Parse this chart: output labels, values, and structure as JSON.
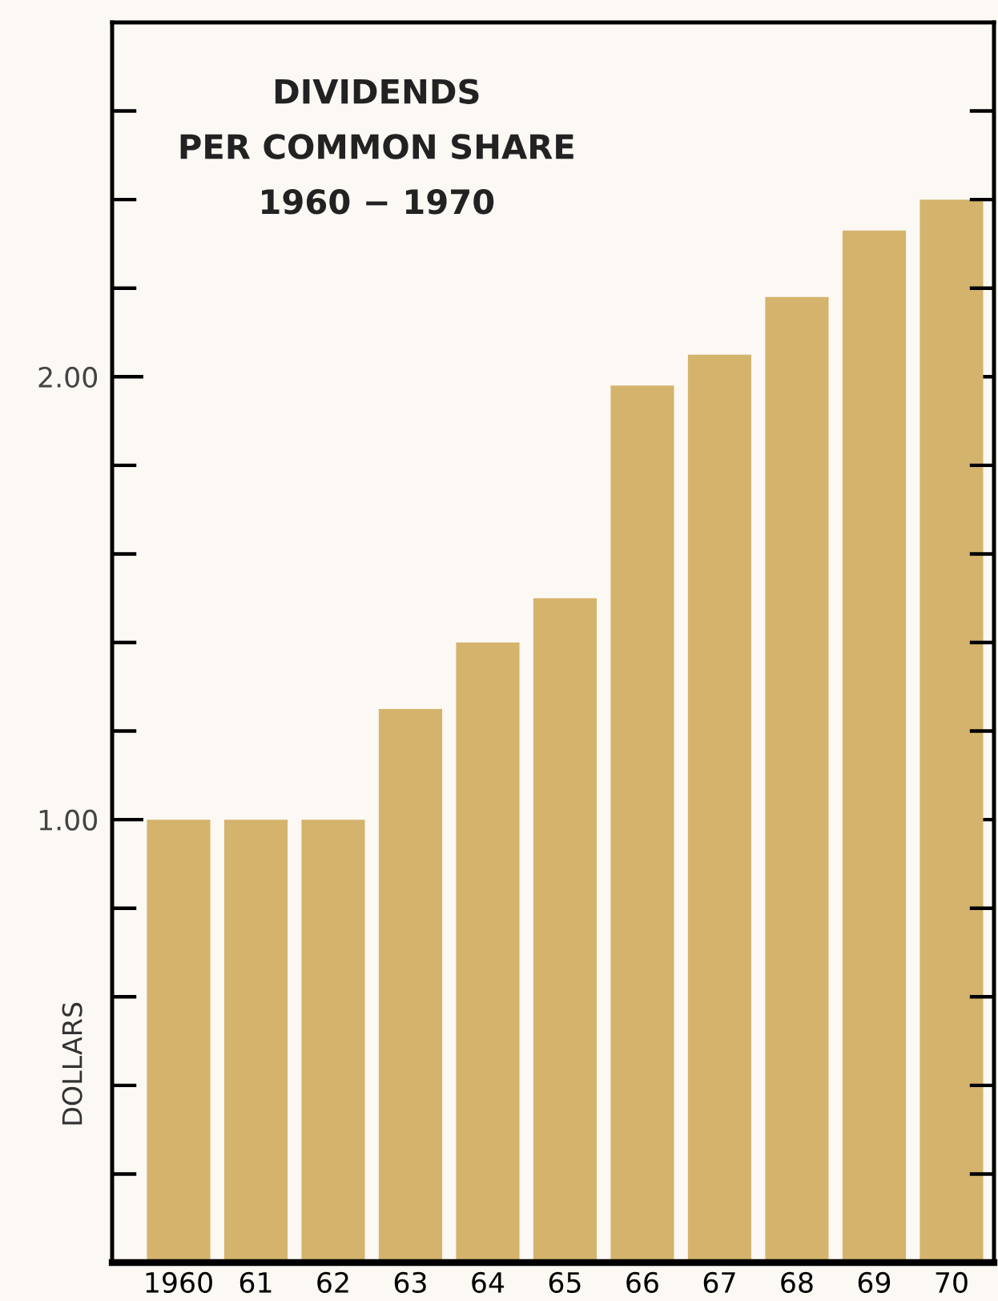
{
  "chart_data": {
    "type": "bar",
    "title": "DIVIDENDS\nPER COMMON SHARE\n1960 − 1970",
    "ylabel": "DOLLARS",
    "categories": [
      "1960",
      "61",
      "62",
      "63",
      "64",
      "65",
      "66",
      "67",
      "68",
      "69",
      "70"
    ],
    "values": [
      1.0,
      1.0,
      1.0,
      1.25,
      1.4,
      1.5,
      1.98,
      2.05,
      2.18,
      2.33,
      2.4
    ],
    "color": "#d4b46c",
    "ylim": [
      0,
      2.8
    ],
    "yticks": [
      {
        "value": 0.2,
        "label": null
      },
      {
        "value": 0.4,
        "label": null
      },
      {
        "value": 0.6,
        "label": null
      },
      {
        "value": 0.8,
        "label": null
      },
      {
        "value": 1.0,
        "label": "1.00"
      },
      {
        "value": 1.2,
        "label": null
      },
      {
        "value": 1.4,
        "label": null
      },
      {
        "value": 1.6,
        "label": null
      },
      {
        "value": 1.8,
        "label": null
      },
      {
        "value": 2.0,
        "label": "2.00"
      },
      {
        "value": 2.2,
        "label": null
      },
      {
        "value": 2.4,
        "label": null
      },
      {
        "value": 2.6,
        "label": null
      }
    ],
    "grid": false
  }
}
